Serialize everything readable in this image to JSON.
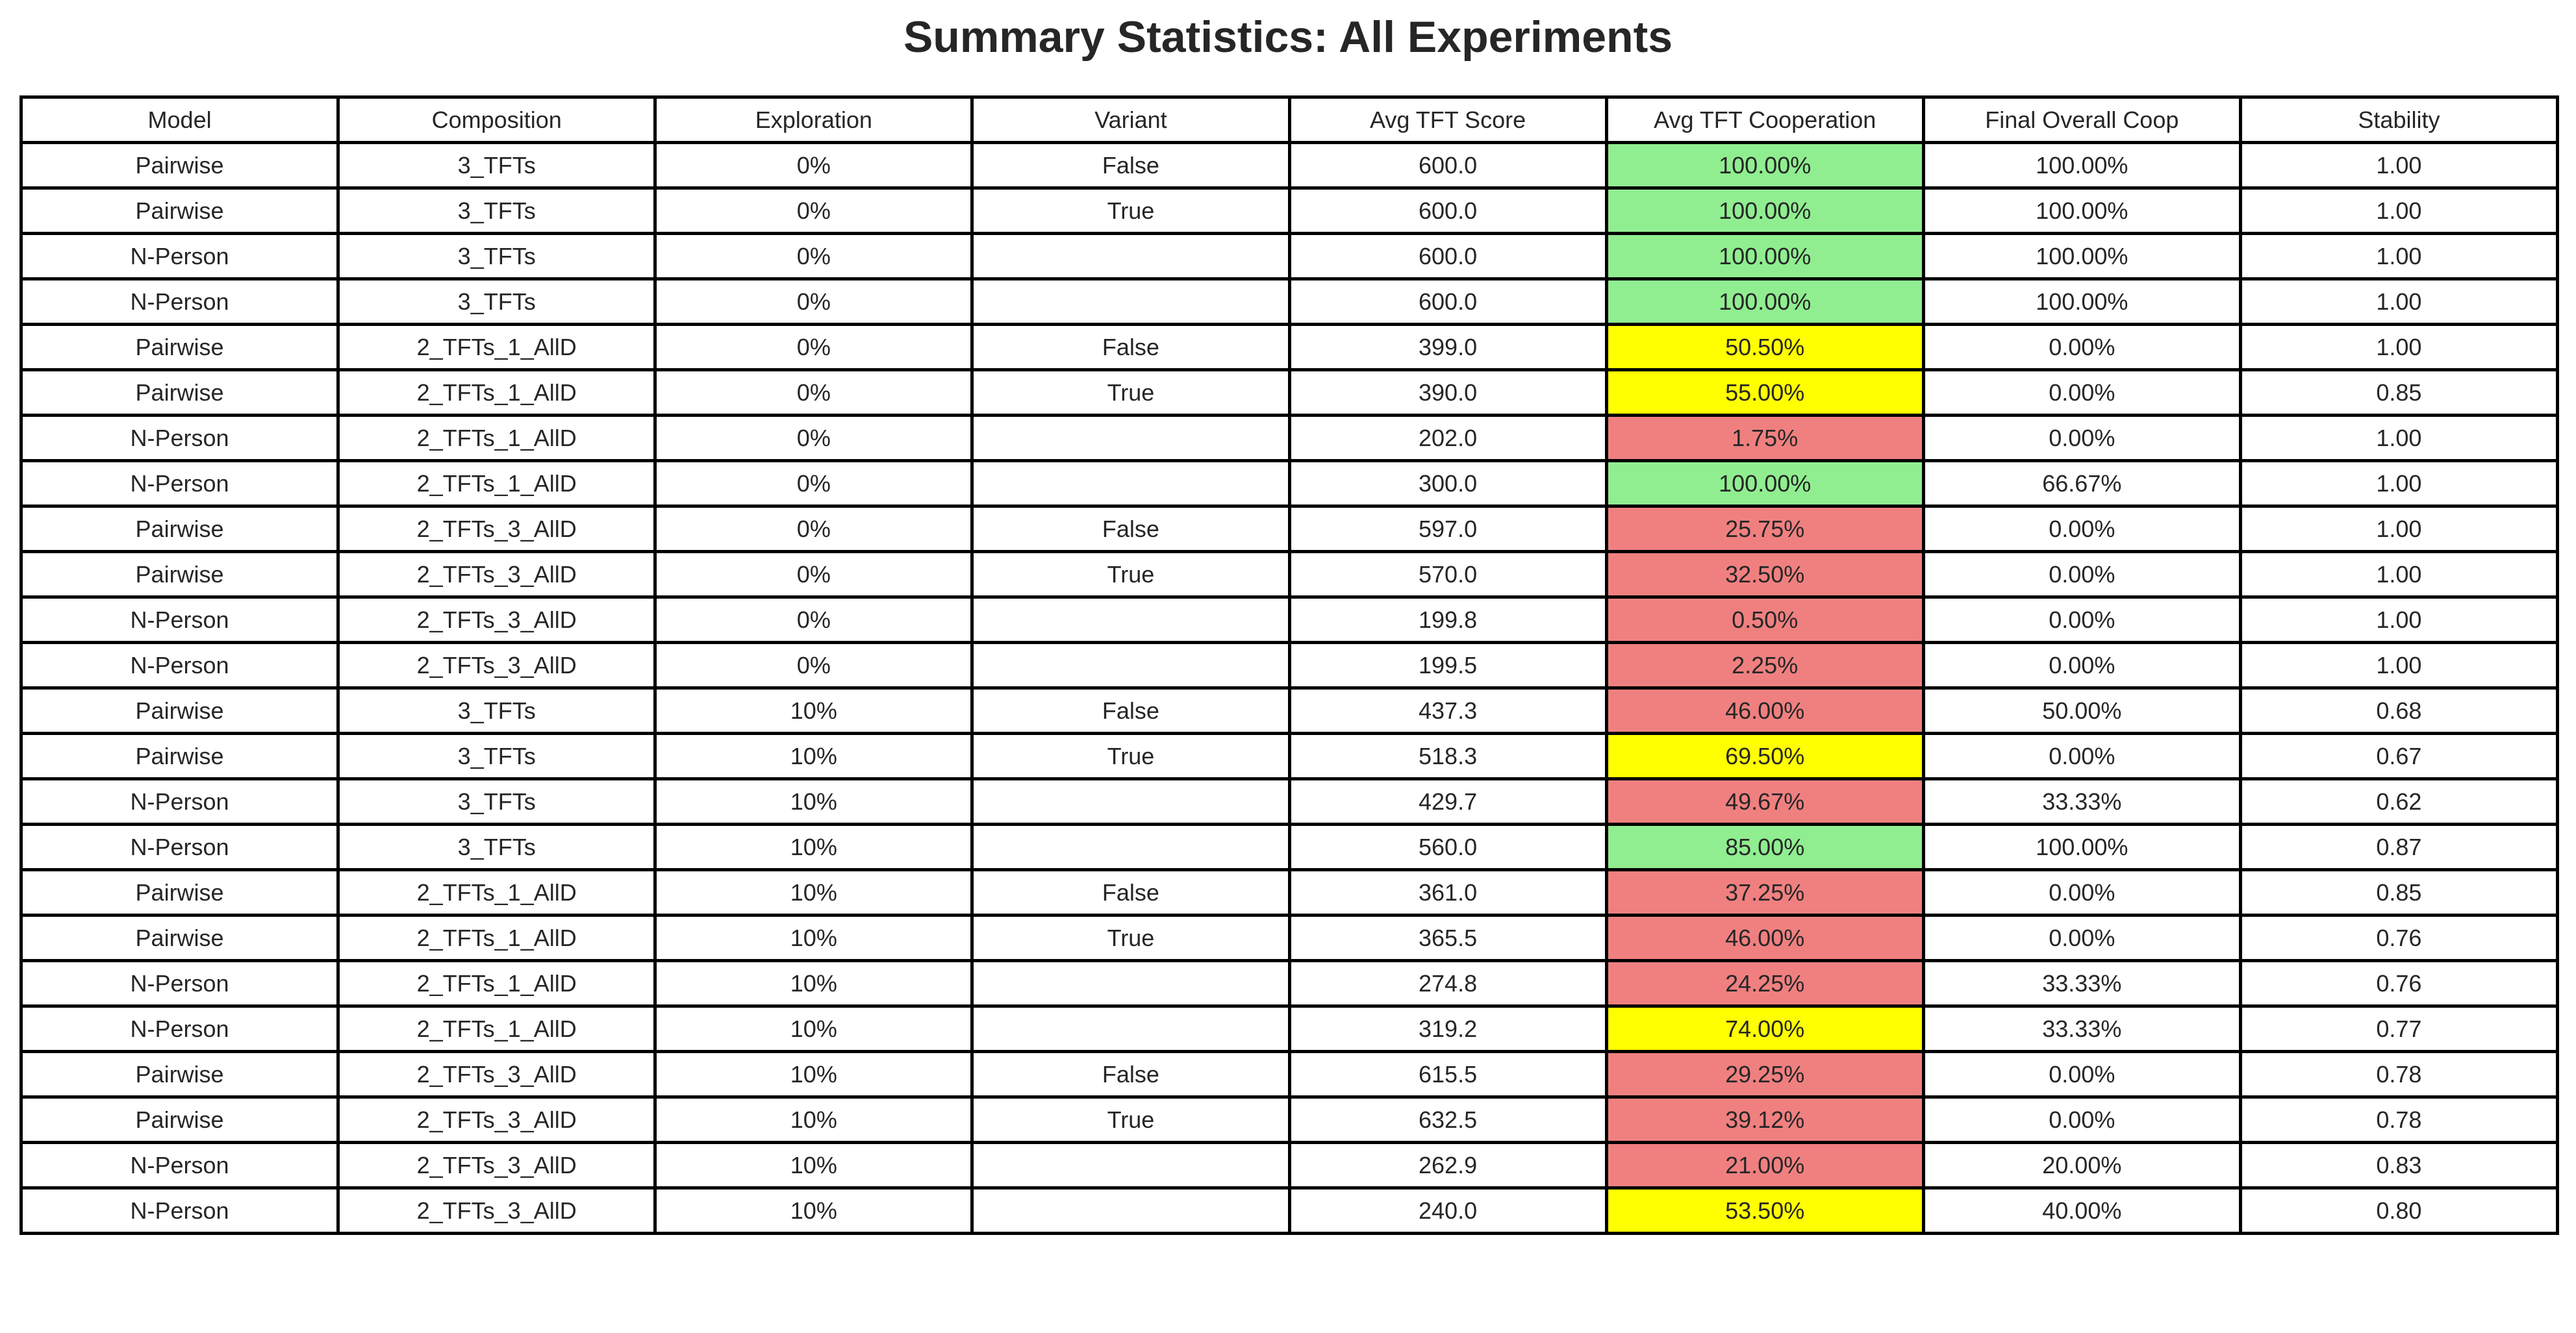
{
  "chart_data": {
    "type": "table",
    "title": "Summary Statistics: All Experiments",
    "columns": [
      "Model",
      "Composition",
      "Exploration",
      "Variant",
      "Avg TFT Score",
      "Avg TFT Cooperation",
      "Final Overall Coop",
      "Stability"
    ],
    "highlight_column": "Avg TFT Cooperation",
    "highlight_colors": {
      "high": "#90EE90",
      "medium": "#FFFF00",
      "low": "#F08080"
    },
    "rows": [
      {
        "cells": [
          "Pairwise",
          "3_TFTs",
          "0%",
          "False",
          "600.0",
          "100.00%",
          "100.00%",
          "1.00"
        ],
        "coop_level": "high"
      },
      {
        "cells": [
          "Pairwise",
          "3_TFTs",
          "0%",
          "True",
          "600.0",
          "100.00%",
          "100.00%",
          "1.00"
        ],
        "coop_level": "high"
      },
      {
        "cells": [
          "N-Person",
          "3_TFTs",
          "0%",
          "",
          "600.0",
          "100.00%",
          "100.00%",
          "1.00"
        ],
        "coop_level": "high"
      },
      {
        "cells": [
          "N-Person",
          "3_TFTs",
          "0%",
          "",
          "600.0",
          "100.00%",
          "100.00%",
          "1.00"
        ],
        "coop_level": "high"
      },
      {
        "cells": [
          "Pairwise",
          "2_TFTs_1_AllD",
          "0%",
          "False",
          "399.0",
          "50.50%",
          "0.00%",
          "1.00"
        ],
        "coop_level": "medium"
      },
      {
        "cells": [
          "Pairwise",
          "2_TFTs_1_AllD",
          "0%",
          "True",
          "390.0",
          "55.00%",
          "0.00%",
          "0.85"
        ],
        "coop_level": "medium"
      },
      {
        "cells": [
          "N-Person",
          "2_TFTs_1_AllD",
          "0%",
          "",
          "202.0",
          "1.75%",
          "0.00%",
          "1.00"
        ],
        "coop_level": "low"
      },
      {
        "cells": [
          "N-Person",
          "2_TFTs_1_AllD",
          "0%",
          "",
          "300.0",
          "100.00%",
          "66.67%",
          "1.00"
        ],
        "coop_level": "high"
      },
      {
        "cells": [
          "Pairwise",
          "2_TFTs_3_AllD",
          "0%",
          "False",
          "597.0",
          "25.75%",
          "0.00%",
          "1.00"
        ],
        "coop_level": "low"
      },
      {
        "cells": [
          "Pairwise",
          "2_TFTs_3_AllD",
          "0%",
          "True",
          "570.0",
          "32.50%",
          "0.00%",
          "1.00"
        ],
        "coop_level": "low"
      },
      {
        "cells": [
          "N-Person",
          "2_TFTs_3_AllD",
          "0%",
          "",
          "199.8",
          "0.50%",
          "0.00%",
          "1.00"
        ],
        "coop_level": "low"
      },
      {
        "cells": [
          "N-Person",
          "2_TFTs_3_AllD",
          "0%",
          "",
          "199.5",
          "2.25%",
          "0.00%",
          "1.00"
        ],
        "coop_level": "low"
      },
      {
        "cells": [
          "Pairwise",
          "3_TFTs",
          "10%",
          "False",
          "437.3",
          "46.00%",
          "50.00%",
          "0.68"
        ],
        "coop_level": "low"
      },
      {
        "cells": [
          "Pairwise",
          "3_TFTs",
          "10%",
          "True",
          "518.3",
          "69.50%",
          "0.00%",
          "0.67"
        ],
        "coop_level": "medium"
      },
      {
        "cells": [
          "N-Person",
          "3_TFTs",
          "10%",
          "",
          "429.7",
          "49.67%",
          "33.33%",
          "0.62"
        ],
        "coop_level": "low"
      },
      {
        "cells": [
          "N-Person",
          "3_TFTs",
          "10%",
          "",
          "560.0",
          "85.00%",
          "100.00%",
          "0.87"
        ],
        "coop_level": "high"
      },
      {
        "cells": [
          "Pairwise",
          "2_TFTs_1_AllD",
          "10%",
          "False",
          "361.0",
          "37.25%",
          "0.00%",
          "0.85"
        ],
        "coop_level": "low"
      },
      {
        "cells": [
          "Pairwise",
          "2_TFTs_1_AllD",
          "10%",
          "True",
          "365.5",
          "46.00%",
          "0.00%",
          "0.76"
        ],
        "coop_level": "low"
      },
      {
        "cells": [
          "N-Person",
          "2_TFTs_1_AllD",
          "10%",
          "",
          "274.8",
          "24.25%",
          "33.33%",
          "0.76"
        ],
        "coop_level": "low"
      },
      {
        "cells": [
          "N-Person",
          "2_TFTs_1_AllD",
          "10%",
          "",
          "319.2",
          "74.00%",
          "33.33%",
          "0.77"
        ],
        "coop_level": "medium"
      },
      {
        "cells": [
          "Pairwise",
          "2_TFTs_3_AllD",
          "10%",
          "False",
          "615.5",
          "29.25%",
          "0.00%",
          "0.78"
        ],
        "coop_level": "low"
      },
      {
        "cells": [
          "Pairwise",
          "2_TFTs_3_AllD",
          "10%",
          "True",
          "632.5",
          "39.12%",
          "0.00%",
          "0.78"
        ],
        "coop_level": "low"
      },
      {
        "cells": [
          "N-Person",
          "2_TFTs_3_AllD",
          "10%",
          "",
          "262.9",
          "21.00%",
          "20.00%",
          "0.83"
        ],
        "coop_level": "low"
      },
      {
        "cells": [
          "N-Person",
          "2_TFTs_3_AllD",
          "10%",
          "",
          "240.0",
          "53.50%",
          "40.00%",
          "0.80"
        ],
        "coop_level": "medium"
      }
    ]
  }
}
